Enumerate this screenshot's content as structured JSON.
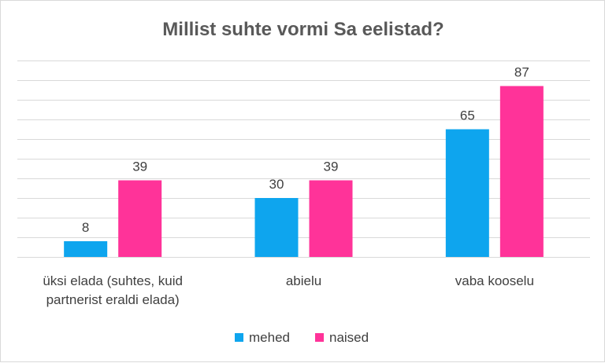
{
  "chart_data": {
    "type": "bar",
    "title": "Millist suhte vormi Sa eelistad?",
    "categories": [
      [
        "üksi elada (suhtes, kuid",
        "partnerist eraldi elada)"
      ],
      [
        "abielu"
      ],
      [
        "vaba kooselu"
      ]
    ],
    "series": [
      {
        "name": "mehed",
        "color": "#0ea5ee",
        "values": [
          8,
          30,
          65
        ]
      },
      {
        "name": "naised",
        "color": "#ff3399",
        "values": [
          39,
          39,
          87
        ]
      }
    ],
    "xlabel": "",
    "ylabel": "",
    "ylim": [
      0,
      100
    ],
    "grid": true,
    "legend": "bottom"
  }
}
